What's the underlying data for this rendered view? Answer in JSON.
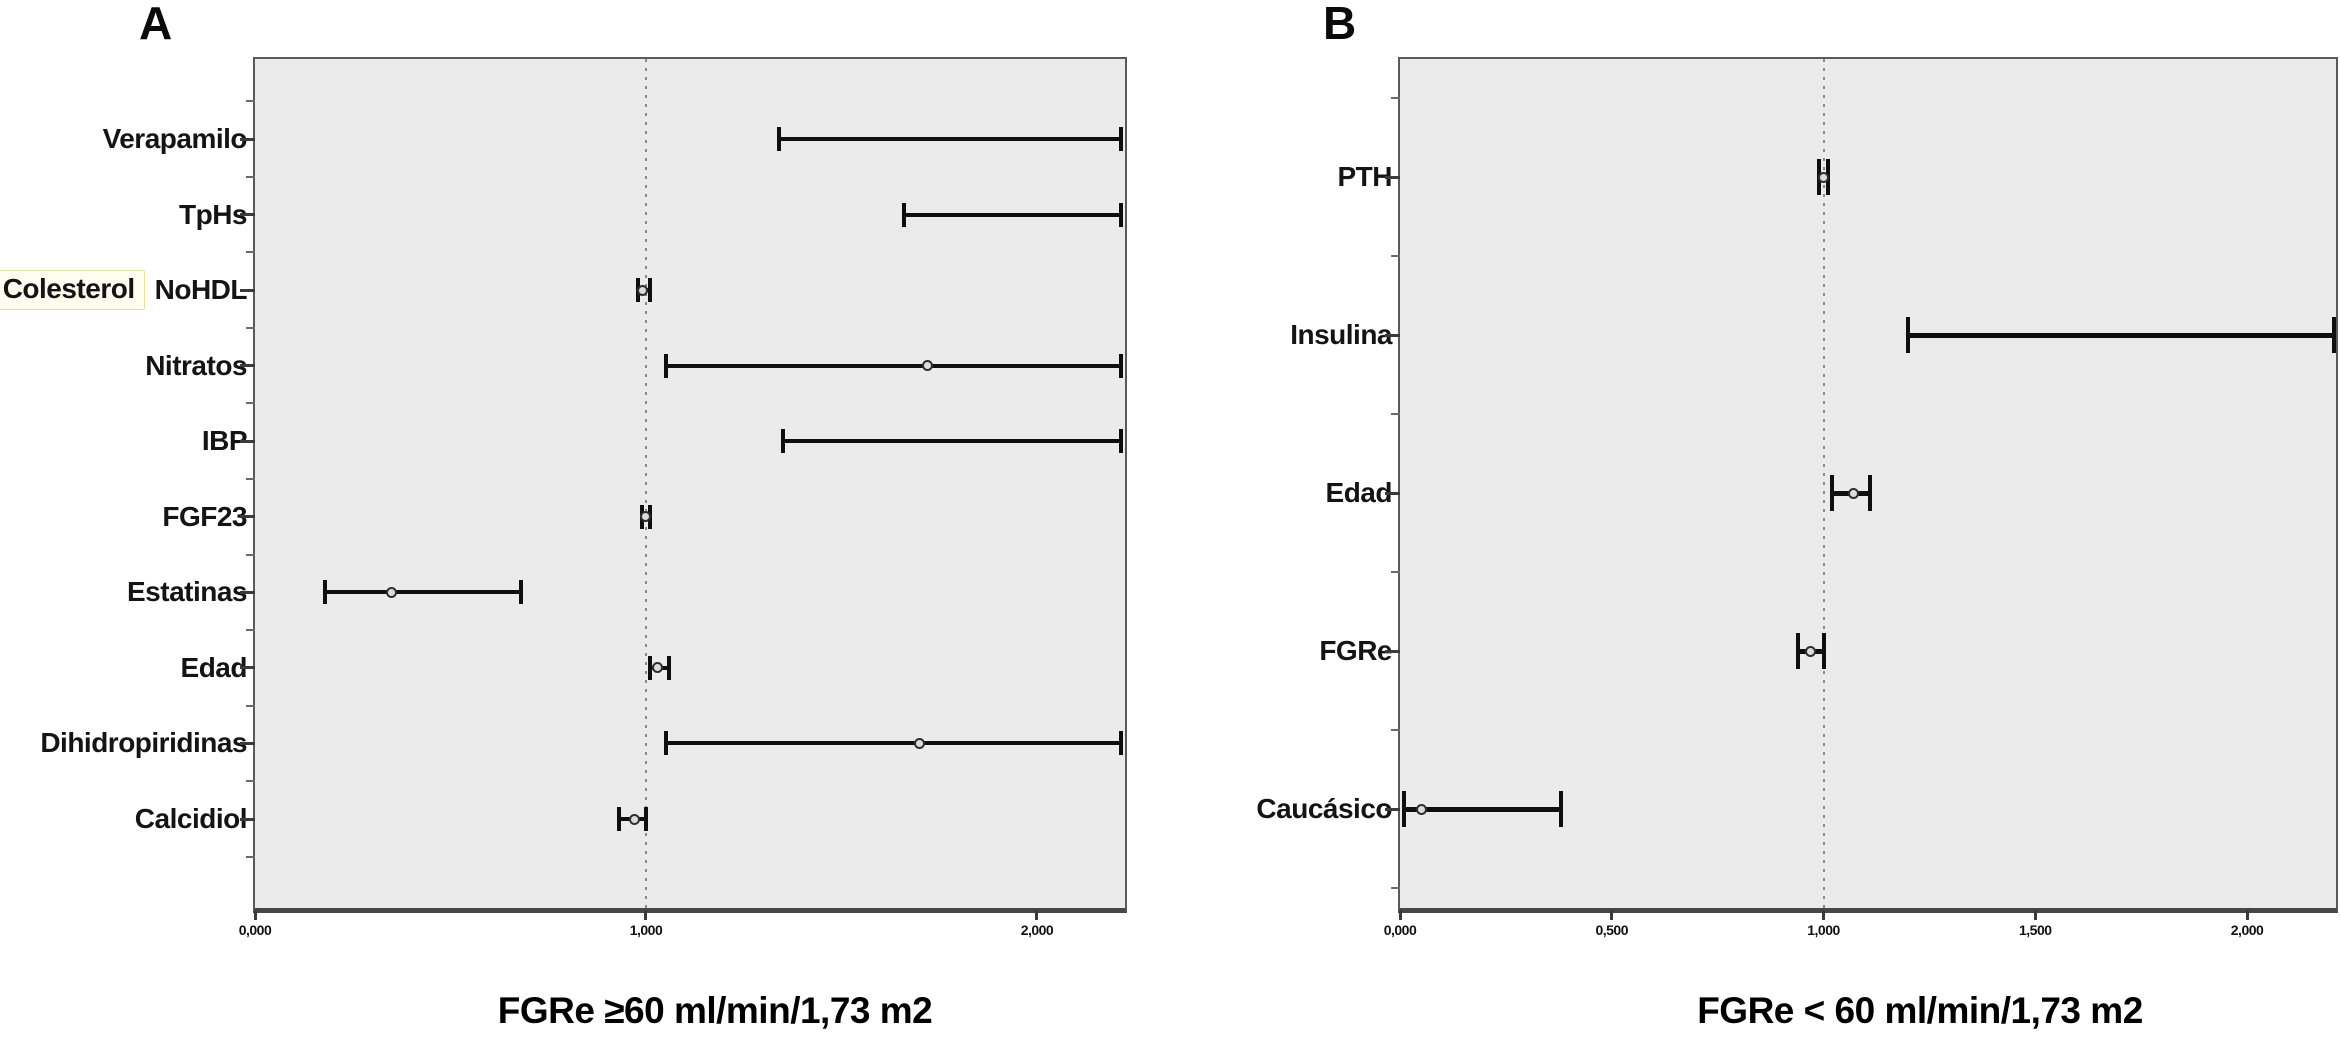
{
  "figure": {
    "panel_a_corner_label": "A",
    "panel_b_corner_label": "B",
    "panel_a_title": "FGRe ≥60 ml/min/1,73 m2",
    "panel_b_title": "FGRe < 60 ml/min/1,73 m2"
  },
  "colors": {
    "plot_background": "#ebebeb",
    "frame": "#5a5a5a",
    "error_bar": "#0f0f0f",
    "reference_line": "#8a8a8a",
    "annotation_background": "#fffdf0",
    "annotation_border": "#e6e09a"
  },
  "chart_data": [
    {
      "type": "scatter",
      "subtype": "forest-plot-error-bars",
      "panel": "A",
      "title": "FGRe ≥60 ml/min/1,73 m2",
      "categories": [
        "Verapamilo",
        "TpHs",
        "NoHDL",
        "Nitratos",
        "IBP",
        "FGF23",
        "Estatinas",
        "Edad",
        "Dihidropiridinas",
        "Calcidiol"
      ],
      "points": [
        null,
        null,
        0.99,
        1.72,
        null,
        1.0,
        0.35,
        1.03,
        1.7,
        0.97
      ],
      "ci_low": [
        1.34,
        1.66,
        0.98,
        1.05,
        1.35,
        0.99,
        0.18,
        1.01,
        1.05,
        0.93
      ],
      "ci_high": [
        2.22,
        2.22,
        1.01,
        2.22,
        2.22,
        1.01,
        0.68,
        1.06,
        2.22,
        1.0
      ],
      "clipped_high": [
        true,
        true,
        false,
        true,
        true,
        false,
        false,
        false,
        true,
        false
      ],
      "xlim": [
        0,
        2.22
      ],
      "refline": 1.0,
      "grid": false,
      "xticks": [
        {
          "value": 0.0,
          "label": "0,000"
        },
        {
          "value": 1.0,
          "label": "1,000"
        },
        {
          "value": 2.0,
          "label": "2,000"
        }
      ],
      "annotation": {
        "text": "Colesterol",
        "row_index": 2
      }
    },
    {
      "type": "scatter",
      "subtype": "forest-plot-error-bars",
      "panel": "B",
      "title": "FGRe < 60 ml/min/1,73 m2",
      "categories": [
        "PTH",
        "Insulina",
        "Edad",
        "FGRe",
        "Caucásico"
      ],
      "points": [
        1.0,
        null,
        1.07,
        0.97,
        0.05
      ],
      "ci_low": [
        0.99,
        1.2,
        1.02,
        0.94,
        0.01
      ],
      "ci_high": [
        1.01,
        2.21,
        1.11,
        1.0,
        0.38
      ],
      "clipped_high": [
        false,
        true,
        false,
        false,
        false
      ],
      "xlim": [
        0,
        2.21
      ],
      "refline": 1.0,
      "grid": false,
      "xticks": [
        {
          "value": 0.0,
          "label": "0,000"
        },
        {
          "value": 0.5,
          "label": "0,500"
        },
        {
          "value": 1.0,
          "label": "1,000"
        },
        {
          "value": 1.5,
          "label": "1,500"
        },
        {
          "value": 2.0,
          "label": "2,000"
        }
      ],
      "annotation": null
    }
  ]
}
